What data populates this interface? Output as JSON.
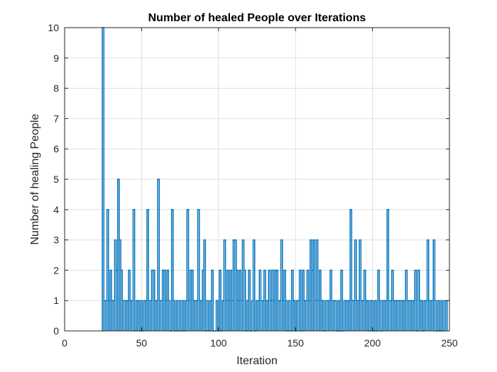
{
  "chart_data": {
    "type": "stem",
    "title": "Number of healed People over Iterations",
    "xlabel": "Iteration",
    "ylabel": "Number of healing People",
    "xlim": [
      0,
      250
    ],
    "ylim": [
      0,
      10
    ],
    "xticks": [
      "0",
      "50",
      "100",
      "150",
      "200",
      "250"
    ],
    "yticks": [
      "0",
      "1",
      "2",
      "3",
      "4",
      "5",
      "6",
      "7",
      "8",
      "9",
      "10"
    ],
    "grid": true,
    "line_color": "#0072BD",
    "series": [
      {
        "x": [
          25,
          26,
          27,
          28,
          29,
          30,
          31,
          32,
          33,
          34,
          35,
          36,
          37,
          38,
          39,
          40,
          41,
          42,
          43,
          44,
          45,
          47,
          48,
          50,
          52,
          53,
          54,
          55,
          56,
          57,
          58,
          59,
          60,
          61,
          62,
          63,
          64,
          65,
          66,
          67,
          68,
          70,
          71,
          73,
          75,
          77,
          79,
          80,
          81,
          82,
          83,
          84,
          85,
          86,
          87,
          88,
          89,
          90,
          91,
          93,
          95,
          96,
          99,
          101,
          103,
          104,
          105,
          106,
          107,
          108,
          109,
          110,
          111,
          112,
          113,
          114,
          115,
          116,
          117,
          119,
          120,
          122,
          123,
          125,
          126,
          127,
          128,
          129,
          130,
          131,
          132,
          133,
          134,
          135,
          136,
          137,
          138,
          139,
          140,
          141,
          142,
          143,
          144,
          146,
          148,
          149,
          151,
          152,
          153,
          155,
          156,
          157,
          158,
          159,
          160,
          161,
          162,
          163,
          164,
          165,
          166,
          167,
          168,
          170,
          171,
          172,
          173,
          174,
          175,
          176,
          178,
          180,
          182,
          183,
          184,
          185,
          186,
          187,
          188,
          189,
          190,
          191,
          192,
          193,
          194,
          195,
          196,
          197,
          199,
          200,
          202,
          204,
          205,
          207,
          208,
          209,
          210,
          211,
          212,
          213,
          214,
          215,
          216,
          217,
          218,
          219,
          220,
          221,
          222,
          223,
          224,
          225,
          226,
          227,
          228,
          230,
          231,
          232,
          234,
          235,
          236,
          237,
          238,
          239,
          240,
          241,
          243,
          245,
          247,
          248
        ],
        "y": [
          10,
          1,
          1,
          4,
          1,
          2,
          1,
          1,
          3,
          2,
          5,
          3,
          2,
          1,
          1,
          1,
          1,
          2,
          1,
          1,
          4,
          1,
          1,
          1,
          1,
          1,
          4,
          1,
          1,
          2,
          2,
          1,
          1,
          5,
          1,
          1,
          2,
          2,
          1,
          2,
          1,
          4,
          1,
          1,
          1,
          1,
          1,
          4,
          1,
          2,
          2,
          1,
          1,
          1,
          4,
          1,
          1,
          2,
          3,
          1,
          1,
          2,
          1,
          2,
          1,
          3,
          1,
          2,
          1,
          2,
          1,
          3,
          3,
          2,
          1,
          2,
          1,
          3,
          2,
          1,
          2,
          1,
          3,
          1,
          1,
          2,
          1,
          1,
          2,
          1,
          1,
          2,
          1,
          2,
          1,
          2,
          2,
          1,
          1,
          3,
          1,
          2,
          1,
          1,
          2,
          1,
          1,
          1,
          2,
          2,
          1,
          1,
          2,
          1,
          3,
          2,
          3,
          1,
          3,
          1,
          2,
          1,
          1,
          1,
          1,
          1,
          2,
          1,
          1,
          1,
          1,
          2,
          1,
          1,
          1,
          1,
          4,
          1,
          1,
          3,
          1,
          1,
          3,
          1,
          1,
          2,
          1,
          1,
          1,
          1,
          1,
          2,
          1,
          1,
          1,
          1,
          4,
          1,
          1,
          2,
          1,
          1,
          1,
          1,
          1,
          1,
          1,
          1,
          2,
          1,
          1,
          1,
          1,
          1,
          2,
          2,
          1,
          1,
          1,
          1,
          3,
          1,
          1,
          1,
          3,
          1,
          1,
          1,
          1,
          1
        ]
      }
    ]
  }
}
